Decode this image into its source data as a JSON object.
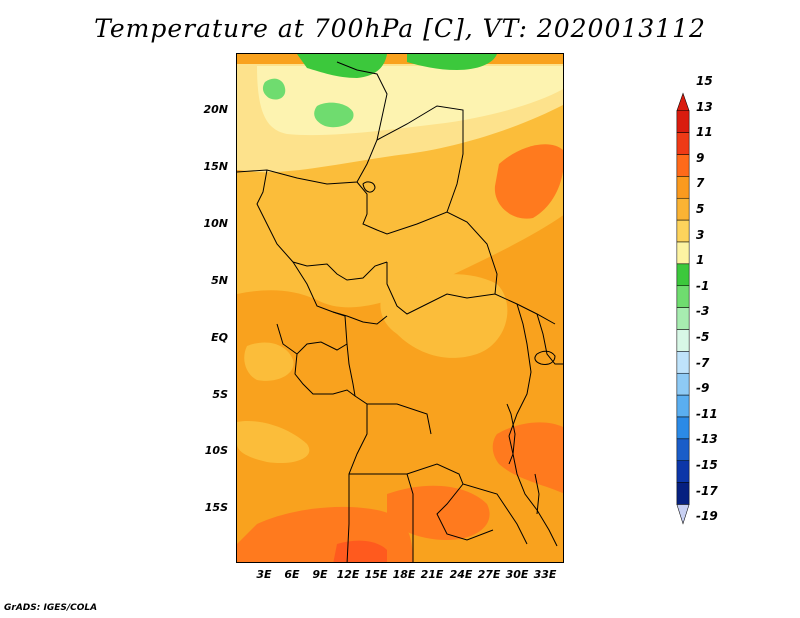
{
  "title": "Temperature at 700hPa [C], VT: 2020013112",
  "footer": "GrADS: IGES/COLA",
  "map": {
    "variable": "Temperature at 700hPa",
    "units": "C",
    "valid_time": "2020013112",
    "lat_labels": [
      "20N",
      "15N",
      "10N",
      "5N",
      "EQ",
      "5S",
      "10S",
      "15S"
    ],
    "lon_labels": [
      "3E",
      "6E",
      "9E",
      "12E",
      "15E",
      "18E",
      "21E",
      "24E",
      "27E",
      "30E",
      "33E"
    ],
    "colors": {
      "c15": "#ff5a1e",
      "c13": "#ff7a1e",
      "c11": "#f9a21e",
      "c9": "#fbbd3a",
      "c7": "#fde28c",
      "c5": "#fdf3b0",
      "c3": "#3cc83c",
      "c1": "#6fdc6f",
      "border": "#000000"
    }
  },
  "colorbar": {
    "labels": [
      "15",
      "13",
      "11",
      "9",
      "7",
      "5",
      "3",
      "1",
      "-1",
      "-3",
      "-5",
      "-7",
      "-9",
      "-11",
      "-13",
      "-15",
      "-17",
      "-19"
    ],
    "colors": [
      "#d91c0e",
      "#ef3a16",
      "#ff6a1a",
      "#fa9a1e",
      "#fab334",
      "#fdd35c",
      "#fdf3a2",
      "#3cc83c",
      "#6fdc6f",
      "#a7ecb0",
      "#d8f7e6",
      "#bfe3fb",
      "#8ecaf5",
      "#5aaef0",
      "#2b8ae6",
      "#1a5dc8",
      "#0c36a8",
      "#062080"
    ],
    "high_arrow": "#d91c0e",
    "low_arrow": "#c8d0f2"
  }
}
